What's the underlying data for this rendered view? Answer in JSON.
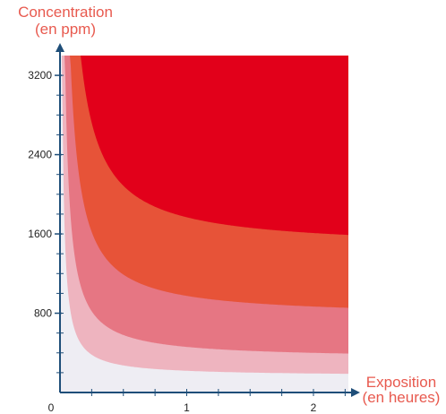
{
  "chart_data": {
    "type": "area",
    "ylabel": [
      "Concentration",
      "(en ppm)"
    ],
    "xlabel": [
      "Exposition",
      "(en heures)"
    ],
    "xlim": [
      0,
      2.25
    ],
    "ylim": [
      0,
      3300
    ],
    "x_ticks": [
      0,
      1,
      2
    ],
    "y_ticks": [
      800,
      1600,
      2400,
      3200
    ],
    "x_minor_step": 0.25,
    "y_minor_step": 200,
    "background_color": "#eeedf3",
    "axis_color": "#1f4e79",
    "zones": [
      {
        "color": "#eeb4bf",
        "k": 54,
        "offset": 165
      },
      {
        "color": "#e67683",
        "k": 120,
        "offset": 340
      },
      {
        "color": "#e75338",
        "k": 215,
        "offset": 760
      },
      {
        "color": "#e2001a",
        "k": 318,
        "offset": 1450
      }
    ]
  }
}
